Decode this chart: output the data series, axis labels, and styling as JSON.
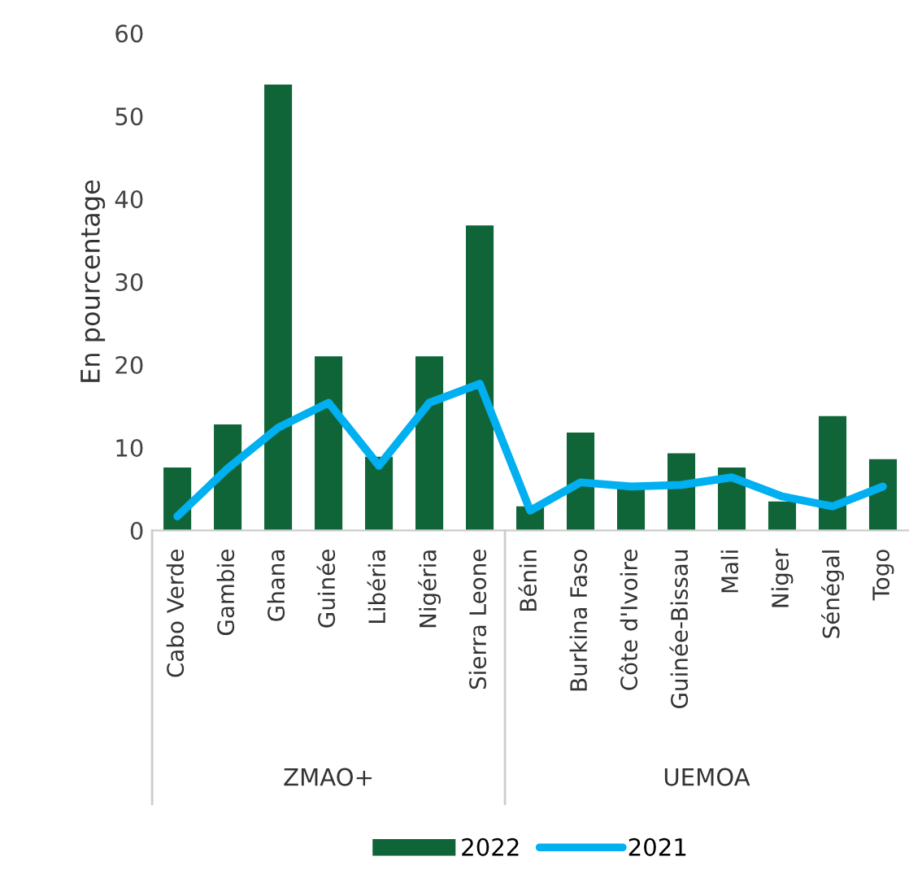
{
  "chart_data": {
    "type": "bar",
    "ylabel": "En pourcentage",
    "categories": [
      "Cabo Verde",
      "Gambie",
      "Ghana",
      "Guinée",
      "Libéria",
      "Nigéria",
      "Sierra Leone",
      "Bénin",
      "Burkina Faso",
      "Côte d'Ivoire",
      "Guinée-Bissau",
      "Mali",
      "Niger",
      "Sénégal",
      "Togo"
    ],
    "series": [
      {
        "name": "2022",
        "color": "#106538",
        "values": [
          7.6,
          12.8,
          53.8,
          21.0,
          8.9,
          21.0,
          36.8,
          2.9,
          11.8,
          5.0,
          9.3,
          7.6,
          3.5,
          13.8,
          8.6
        ]
      },
      {
        "name": "2021",
        "type": "line",
        "color": "#00b0f0",
        "values": [
          1.7,
          7.5,
          12.4,
          15.4,
          7.8,
          15.4,
          17.7,
          2.4,
          5.8,
          5.3,
          5.5,
          6.4,
          4.1,
          2.9,
          5.3
        ]
      }
    ],
    "ylim": [
      0,
      60
    ],
    "yticks": [
      0,
      10,
      20,
      30,
      40,
      50,
      60
    ],
    "grid": false,
    "legend": "bottom",
    "annotations": [
      "ZMAO+",
      "UEMOA"
    ]
  }
}
